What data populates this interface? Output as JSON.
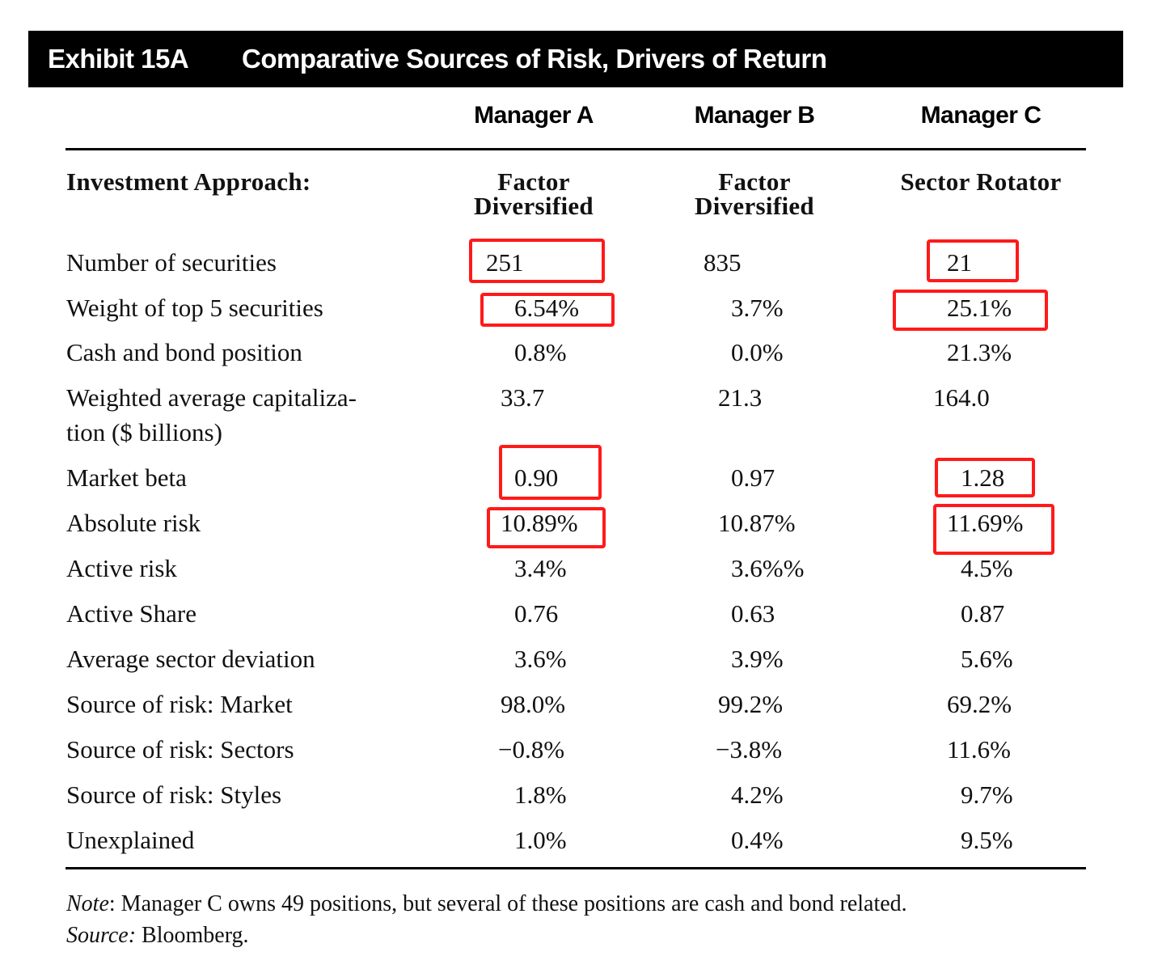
{
  "exhibit": {
    "number": "Exhibit 15A",
    "title": "Comparative Sources of Risk, Drivers of Return"
  },
  "columns": [
    "Manager A",
    "Manager B",
    "Manager C"
  ],
  "approach": {
    "label": "Investment Approach:",
    "values": [
      [
        "Factor",
        "Diversified"
      ],
      [
        "Factor",
        "Diversified"
      ],
      [
        "Sector Rotator",
        ""
      ]
    ]
  },
  "rows": [
    {
      "label": "Number of securities",
      "values": [
        "251",
        "835",
        "21"
      ]
    },
    {
      "label": "Weight of top 5 securities",
      "values": [
        "6.54%",
        "3.7%",
        "25.1%"
      ]
    },
    {
      "label": "Cash and bond position",
      "values": [
        "0.8%",
        "0.0%",
        "21.3%"
      ]
    },
    {
      "label": "Weighted average capitaliza-",
      "label2": "tion ($ billions)",
      "values": [
        "33.7",
        "21.3",
        "164.0"
      ]
    },
    {
      "label": "Market beta",
      "values": [
        "0.90",
        "0.97",
        "1.28"
      ]
    },
    {
      "label": "Absolute risk",
      "values": [
        "10.89%",
        "10.87%",
        "11.69%"
      ]
    },
    {
      "label": "Active risk",
      "values": [
        "3.4%",
        "3.6%%",
        "4.5%"
      ]
    },
    {
      "label": "Active Share",
      "values": [
        "0.76",
        "0.63",
        "0.87"
      ]
    },
    {
      "label": "Average sector deviation",
      "values": [
        "3.6%",
        "3.9%",
        "5.6%"
      ]
    },
    {
      "label": "Source of risk: Market",
      "values": [
        "98.0%",
        "99.2%",
        "69.2%"
      ]
    },
    {
      "label": "Source of risk: Sectors",
      "values": [
        "−0.8%",
        "−3.8%",
        "11.6%"
      ]
    },
    {
      "label": "Source of risk: Styles",
      "values": [
        "1.8%",
        "4.2%",
        "9.7%"
      ]
    },
    {
      "label": "Unexplained",
      "values": [
        "1.0%",
        "0.4%",
        "9.5%"
      ]
    }
  ],
  "footer": {
    "note_label": "Note",
    "note_text": ": Manager C owns 49 positions, but several of these positions are cash and bond related.",
    "source_label": "Source:",
    "source_text": " Bloomberg."
  },
  "highlight_color": "#ff1a1a"
}
